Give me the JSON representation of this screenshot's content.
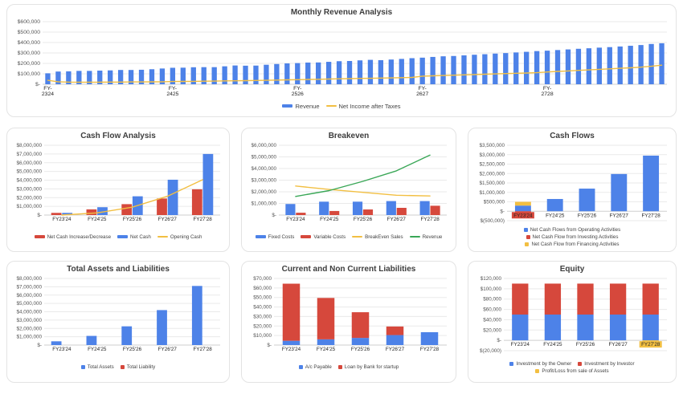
{
  "colors": {
    "blue": "#4d82e8",
    "red": "#d6483c",
    "yellow": "#f2bf42",
    "green": "#3aa757"
  },
  "chart_data": [
    {
      "id": "monthly-revenue",
      "type": "combo",
      "title": "Monthly Revenue Analysis",
      "legend_marker": "dash",
      "ml": 38,
      "ylim": [
        0,
        600000
      ],
      "yticks": [
        {
          "v": 600000,
          "label": "$600,000"
        },
        {
          "v": 500000,
          "label": "$500,000"
        },
        {
          "v": 400000,
          "label": "$400,000"
        },
        {
          "v": 300000,
          "label": "$300,000"
        },
        {
          "v": 200000,
          "label": "$200,000"
        },
        {
          "v": 100000,
          "label": "$100,000"
        },
        {
          "v": 0,
          "label": "$-"
        }
      ],
      "xticks": [
        {
          "index": 0,
          "label": "FY-\n2324"
        },
        {
          "index": 12,
          "label": "FY-\n2425"
        },
        {
          "index": 24,
          "label": "FY-\n2526"
        },
        {
          "index": 36,
          "label": "FY-\n2627"
        },
        {
          "index": 48,
          "label": "FY-\n2728"
        }
      ],
      "series": [
        {
          "name": "Revenue",
          "type": "bar",
          "color": "#4d82e8",
          "values": [
            105000,
            122000,
            124000,
            128000,
            128000,
            131000,
            133000,
            137000,
            137000,
            139000,
            144000,
            151000,
            158000,
            159000,
            163000,
            164000,
            164000,
            172000,
            180000,
            178000,
            179000,
            187000,
            194000,
            200000,
            203000,
            208000,
            209000,
            215000,
            221000,
            223000,
            229000,
            234000,
            231000,
            237000,
            243000,
            250000,
            255000,
            262000,
            268000,
            271000,
            277000,
            283000,
            288000,
            294000,
            299000,
            305000,
            311000,
            318000,
            322000,
            328000,
            334000,
            340000,
            345000,
            351000,
            356000,
            362000,
            369000,
            376000,
            386000,
            393000
          ]
        },
        {
          "name": "Net Income after Taxes",
          "type": "line",
          "color": "#f2bf42",
          "values": [
            38000,
            24000,
            21000,
            20000,
            20000,
            20000,
            21000,
            21000,
            22000,
            22000,
            23000,
            24000,
            26000,
            27000,
            28000,
            29000,
            30000,
            32000,
            33000,
            35000,
            36000,
            38000,
            40000,
            42000,
            44000,
            46000,
            48000,
            50000,
            52000,
            54000,
            56000,
            57000,
            59000,
            61000,
            63000,
            65000,
            78000,
            81000,
            84000,
            87000,
            90000,
            93000,
            96000,
            99000,
            102000,
            105000,
            108000,
            111000,
            118000,
            123000,
            128000,
            133000,
            138000,
            143000,
            148000,
            153000,
            158000,
            164000,
            172000,
            183000
          ]
        }
      ]
    },
    {
      "id": "cash-flow-analysis",
      "type": "combo",
      "title": "Cash Flow Analysis",
      "legend_marker": "dash",
      "ml": 40,
      "categories": [
        "FY23'24",
        "FY24'25",
        "FY25'26",
        "FY26'27",
        "FY27'28"
      ],
      "ylim": [
        0,
        8000000
      ],
      "yticks": [
        {
          "v": 8000000,
          "label": "$8,000,000"
        },
        {
          "v": 7000000,
          "label": "$7,000,000"
        },
        {
          "v": 6000000,
          "label": "$6,000,000"
        },
        {
          "v": 5000000,
          "label": "$5,000,000"
        },
        {
          "v": 4000000,
          "label": "$4,000,000"
        },
        {
          "v": 3000000,
          "label": "$3,000,000"
        },
        {
          "v": 2000000,
          "label": "$2,000,000"
        },
        {
          "v": 1000000,
          "label": "$1,000,000"
        },
        {
          "v": 0,
          "label": "$-"
        }
      ],
      "series": [
        {
          "name": "Net Cash Increase/Decrease",
          "type": "bar",
          "color": "#d6483c",
          "values": [
            250000,
            650000,
            1250000,
            1900000,
            2950000
          ]
        },
        {
          "name": "Net Cash",
          "type": "bar",
          "color": "#4d82e8",
          "values": [
            250000,
            900000,
            2150000,
            4050000,
            7000000
          ]
        },
        {
          "name": "Opening Cash",
          "type": "line",
          "color": "#f2bf42",
          "values": [
            0,
            250000,
            900000,
            2150000,
            4050000
          ]
        }
      ]
    },
    {
      "id": "breakeven",
      "type": "combo",
      "title": "Breakeven",
      "legend_marker": "dash",
      "ml": 40,
      "categories": [
        "FY23'24",
        "FY24'25",
        "FY25'26",
        "FY26'27",
        "FY27'28"
      ],
      "ylim": [
        0,
        6000000
      ],
      "yticks": [
        {
          "v": 6000000,
          "label": "$6,000,000"
        },
        {
          "v": 5000000,
          "label": "$5,000,000"
        },
        {
          "v": 4000000,
          "label": "$4,000,000"
        },
        {
          "v": 3000000,
          "label": "$3,000,000"
        },
        {
          "v": 2000000,
          "label": "$2,000,000"
        },
        {
          "v": 1000000,
          "label": "$1,000,000"
        },
        {
          "v": 0,
          "label": "$-"
        }
      ],
      "series": [
        {
          "name": "Fixed Costs",
          "type": "bar",
          "color": "#4d82e8",
          "values": [
            950000,
            1150000,
            1150000,
            1200000,
            1200000
          ]
        },
        {
          "name": "Variable Costs",
          "type": "bar",
          "color": "#d6483c",
          "values": [
            200000,
            350000,
            480000,
            620000,
            800000
          ]
        },
        {
          "name": "BreakEven Sales",
          "type": "line",
          "color": "#f2bf42",
          "values": [
            2500000,
            2200000,
            1950000,
            1700000,
            1640000
          ]
        },
        {
          "name": "Revenue",
          "type": "line",
          "color": "#3aa757",
          "values": [
            1600000,
            2100000,
            2900000,
            3800000,
            5150000
          ]
        }
      ]
    },
    {
      "id": "cash-flows",
      "type": "bar",
      "stacked": true,
      "title": "Cash Flows",
      "legend_marker": "square",
      "ml": 42,
      "categories": [
        "FY23'24",
        "FY24'25",
        "FY25'26",
        "FY26'27",
        "FY27'28"
      ],
      "xlabel_highlights": {
        "FY23'24": "#d6483c"
      },
      "ylim": [
        -500000,
        3500000
      ],
      "yticks": [
        {
          "v": 3500000,
          "label": "$3,500,000"
        },
        {
          "v": 3000000,
          "label": "$3,000,000"
        },
        {
          "v": 2500000,
          "label": "$2,500,000"
        },
        {
          "v": 2000000,
          "label": "$2,000,000"
        },
        {
          "v": 1500000,
          "label": "$1,500,000"
        },
        {
          "v": 1000000,
          "label": "$1,000,000"
        },
        {
          "v": 500000,
          "label": "$500,000"
        },
        {
          "v": 0,
          "label": "$-"
        },
        {
          "v": -500000,
          "label": "$(500,000)"
        }
      ],
      "series": [
        {
          "name": "Net Cash Flows from Operating Activities",
          "type": "bar",
          "color": "#4d82e8",
          "values": [
            300000,
            650000,
            1200000,
            1975000,
            2950000
          ]
        },
        {
          "name": "Net Cash Flow from Investing Activities",
          "type": "bar",
          "color": "#d6483c",
          "values": [
            -150000,
            0,
            0,
            0,
            0
          ]
        },
        {
          "name": "Net Cash Flow from Financing Activities",
          "type": "bar",
          "color": "#f2bf42",
          "values": [
            200000,
            0,
            0,
            0,
            0
          ]
        }
      ]
    },
    {
      "id": "total-assets-liabilities",
      "type": "bar",
      "title": "Total Assets and Liabilities",
      "legend_marker": "square",
      "ml": 40,
      "categories": [
        "FY23'24",
        "FY24'25",
        "FY25'26",
        "FY26'27",
        "FY27'28"
      ],
      "ylim": [
        0,
        8000000
      ],
      "yticks": [
        {
          "v": 8000000,
          "label": "$8,000,000"
        },
        {
          "v": 7000000,
          "label": "$7,000,000"
        },
        {
          "v": 6000000,
          "label": "$6,000,000"
        },
        {
          "v": 5000000,
          "label": "$5,000,000"
        },
        {
          "v": 4000000,
          "label": "$4,000,000"
        },
        {
          "v": 3000000,
          "label": "$3,000,000"
        },
        {
          "v": 2000000,
          "label": "$2,000,000"
        },
        {
          "v": 1000000,
          "label": "$1,000,000"
        },
        {
          "v": 0,
          "label": "$-"
        }
      ],
      "series": [
        {
          "name": "Total Assets",
          "type": "bar",
          "color": "#4d82e8",
          "values": [
            450000,
            1100000,
            2250000,
            4200000,
            7100000
          ]
        },
        {
          "name": "Total Liability",
          "type": "bar",
          "color": "#d6483c",
          "values": [
            0,
            0,
            0,
            0,
            0
          ]
        }
      ]
    },
    {
      "id": "current-noncurrent-liabilities",
      "type": "bar",
      "stacked": true,
      "title": "Current and Non Current Liabilities",
      "legend_marker": "square",
      "ml": 34,
      "categories": [
        "FY23'24",
        "FY24'25",
        "FY25'26",
        "FY26'27",
        "FY27'28"
      ],
      "ylim": [
        0,
        70000
      ],
      "yticks": [
        {
          "v": 70000,
          "label": "$70,000"
        },
        {
          "v": 60000,
          "label": "$60,000"
        },
        {
          "v": 50000,
          "label": "$50,000"
        },
        {
          "v": 40000,
          "label": "$40,000"
        },
        {
          "v": 30000,
          "label": "$30,000"
        },
        {
          "v": 20000,
          "label": "$20,000"
        },
        {
          "v": 10000,
          "label": "$10,000"
        },
        {
          "v": 0,
          "label": "$-"
        }
      ],
      "series": [
        {
          "name": "A/c Payable",
          "type": "bar",
          "color": "#4d82e8",
          "values": [
            4500,
            6000,
            7500,
            10500,
            13500
          ]
        },
        {
          "name": "Loan by Bank for startup",
          "type": "bar",
          "color": "#d6483c",
          "values": [
            60000,
            43500,
            27000,
            9000,
            0
          ]
        }
      ]
    },
    {
      "id": "equity",
      "type": "bar",
      "stacked": true,
      "title": "Equity",
      "legend_marker": "square",
      "ml": 38,
      "categories": [
        "FY23'24",
        "FY24'25",
        "FY25'26",
        "FY26'27",
        "FY27'28"
      ],
      "xlabel_highlights": {
        "FY27'28": "#f2bf42"
      },
      "ylim": [
        -20000,
        120000
      ],
      "yticks": [
        {
          "v": 120000,
          "label": "$120,000"
        },
        {
          "v": 100000,
          "label": "$100,000"
        },
        {
          "v": 80000,
          "label": "$80,000"
        },
        {
          "v": 60000,
          "label": "$60,000"
        },
        {
          "v": 40000,
          "label": "$40,000"
        },
        {
          "v": 20000,
          "label": "$20,000"
        },
        {
          "v": 0,
          "label": "$-"
        },
        {
          "v": -20000,
          "label": "$(20,000)"
        }
      ],
      "series": [
        {
          "name": "Investment by the Owner",
          "type": "bar",
          "color": "#4d82e8",
          "values": [
            50000,
            50000,
            50000,
            50000,
            50000
          ]
        },
        {
          "name": "Investment by Investor",
          "type": "bar",
          "color": "#d6483c",
          "values": [
            60000,
            60000,
            60000,
            60000,
            60000
          ]
        },
        {
          "name": "Profit/Loss from sale of Assets",
          "type": "bar",
          "color": "#f2bf42",
          "values": [
            0,
            0,
            0,
            0,
            -2000
          ]
        }
      ]
    }
  ]
}
